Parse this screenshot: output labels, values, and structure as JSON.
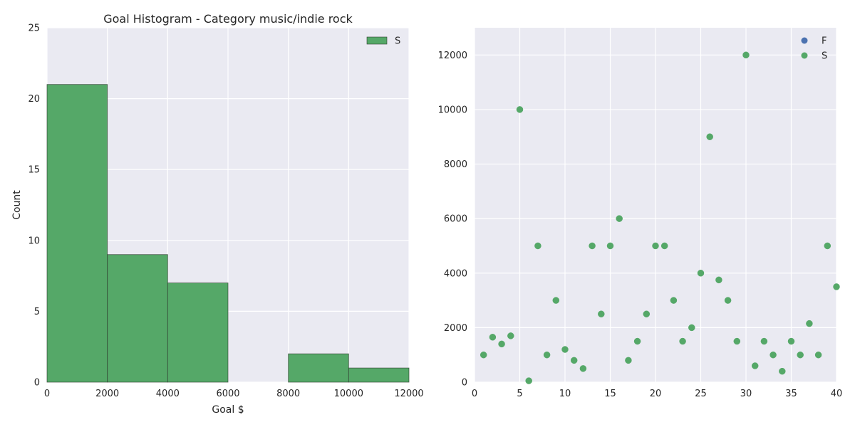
{
  "chart_data": [
    {
      "type": "bar",
      "title": "Goal Histogram - Category music/indie rock",
      "xlabel": "Goal $",
      "ylabel": "Count",
      "xlim": [
        0,
        12000
      ],
      "ylim": [
        0,
        25
      ],
      "xticks": [
        0,
        2000,
        4000,
        6000,
        8000,
        10000,
        12000
      ],
      "yticks": [
        0,
        5,
        10,
        15,
        20,
        25
      ],
      "grid": true,
      "legend_position": "top-right",
      "series": [
        {
          "name": "S",
          "color": "#55a868",
          "bins": [
            {
              "x0": 0,
              "x1": 2000,
              "count": 21
            },
            {
              "x0": 2000,
              "x1": 4000,
              "count": 9
            },
            {
              "x0": 4000,
              "x1": 6000,
              "count": 7
            },
            {
              "x0": 6000,
              "x1": 8000,
              "count": 0
            },
            {
              "x0": 8000,
              "x1": 10000,
              "count": 2
            },
            {
              "x0": 10000,
              "x1": 12000,
              "count": 1
            }
          ]
        }
      ]
    },
    {
      "type": "scatter",
      "title": "",
      "xlabel": "",
      "ylabel": "",
      "xlim": [
        0,
        40
      ],
      "ylim": [
        0,
        13000
      ],
      "xticks": [
        0,
        5,
        10,
        15,
        20,
        25,
        30,
        35,
        40
      ],
      "yticks": [
        0,
        2000,
        4000,
        6000,
        8000,
        10000,
        12000
      ],
      "grid": true,
      "legend_position": "top-right",
      "series": [
        {
          "name": "F",
          "color": "#4c72b0",
          "x": [],
          "y": []
        },
        {
          "name": "S",
          "color": "#55a868",
          "x": [
            1,
            2,
            3,
            4,
            5,
            6,
            7,
            8,
            9,
            10,
            11,
            12,
            13,
            14,
            15,
            16,
            17,
            18,
            19,
            20,
            21,
            22,
            23,
            24,
            25,
            26,
            27,
            28,
            29,
            30,
            31,
            32,
            33,
            34,
            35,
            36,
            37,
            38,
            39,
            40
          ],
          "y": [
            1000,
            1650,
            1400,
            1700,
            10000,
            50,
            5000,
            1000,
            3000,
            1200,
            800,
            500,
            5000,
            2500,
            5000,
            6000,
            800,
            1500,
            2500,
            5000,
            5000,
            3000,
            1500,
            2000,
            4000,
            9000,
            3750,
            3000,
            1500,
            12000,
            600,
            1500,
            1000,
            400,
            1500,
            1000,
            2150,
            1000,
            5000,
            3500
          ]
        }
      ]
    }
  ]
}
